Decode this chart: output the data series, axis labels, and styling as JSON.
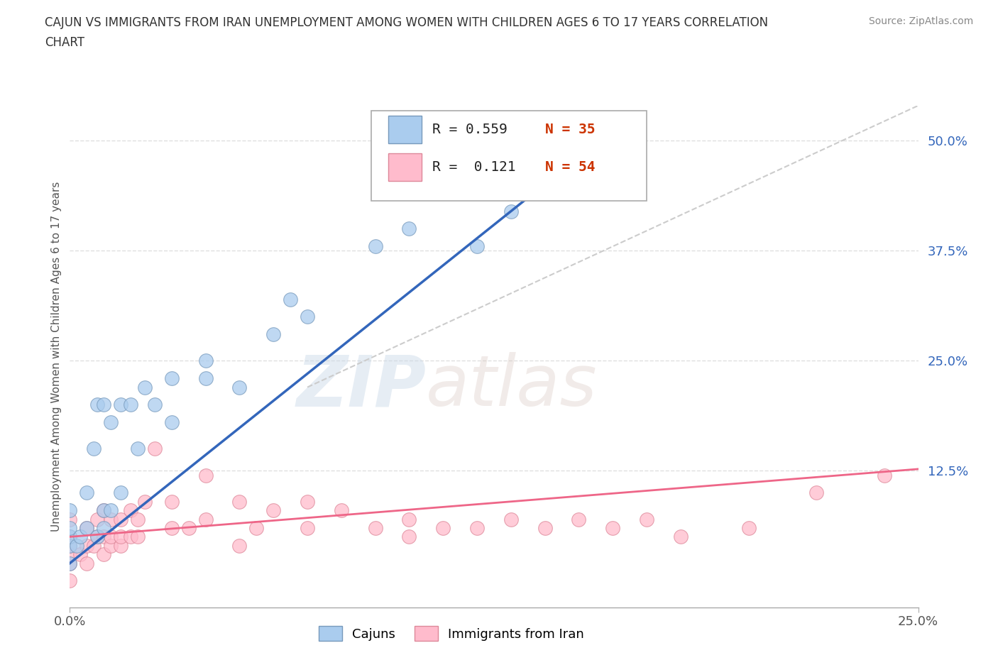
{
  "title_line1": "CAJUN VS IMMIGRANTS FROM IRAN UNEMPLOYMENT AMONG WOMEN WITH CHILDREN AGES 6 TO 17 YEARS CORRELATION",
  "title_line2": "CHART",
  "source": "Source: ZipAtlas.com",
  "ylabel": "Unemployment Among Women with Children Ages 6 to 17 years",
  "xlim": [
    0.0,
    0.25
  ],
  "ylim": [
    -0.03,
    0.54
  ],
  "ytick_labels": [
    "12.5%",
    "25.0%",
    "37.5%",
    "50.0%"
  ],
  "ytick_values": [
    0.125,
    0.25,
    0.375,
    0.5
  ],
  "grid_color": "#e0e0e0",
  "background_color": "#ffffff",
  "cajun_color": "#aaccee",
  "cajun_edge_color": "#7799bb",
  "iran_color": "#ffbbcc",
  "iran_edge_color": "#dd8899",
  "cajun_R": 0.559,
  "cajun_N": 35,
  "iran_R": 0.121,
  "iran_N": 54,
  "cajun_line_color": "#3366bb",
  "iran_line_color": "#ee6688",
  "trend_line_color": "#cccccc",
  "cajun_scatter_x": [
    0.0,
    0.0,
    0.0,
    0.0,
    0.0,
    0.002,
    0.003,
    0.005,
    0.005,
    0.007,
    0.008,
    0.008,
    0.01,
    0.01,
    0.01,
    0.012,
    0.012,
    0.015,
    0.015,
    0.018,
    0.02,
    0.022,
    0.025,
    0.03,
    0.03,
    0.04,
    0.04,
    0.05,
    0.06,
    0.065,
    0.07,
    0.09,
    0.1,
    0.12,
    0.13
  ],
  "cajun_scatter_y": [
    0.02,
    0.04,
    0.05,
    0.06,
    0.08,
    0.04,
    0.05,
    0.06,
    0.1,
    0.15,
    0.05,
    0.2,
    0.06,
    0.08,
    0.2,
    0.08,
    0.18,
    0.1,
    0.2,
    0.2,
    0.15,
    0.22,
    0.2,
    0.18,
    0.23,
    0.23,
    0.25,
    0.22,
    0.28,
    0.32,
    0.3,
    0.38,
    0.4,
    0.38,
    0.42
  ],
  "iran_scatter_x": [
    0.0,
    0.0,
    0.0,
    0.0,
    0.0,
    0.0,
    0.003,
    0.005,
    0.005,
    0.005,
    0.007,
    0.008,
    0.008,
    0.01,
    0.01,
    0.01,
    0.012,
    0.012,
    0.012,
    0.015,
    0.015,
    0.015,
    0.018,
    0.018,
    0.02,
    0.02,
    0.022,
    0.025,
    0.03,
    0.03,
    0.035,
    0.04,
    0.04,
    0.05,
    0.05,
    0.055,
    0.06,
    0.07,
    0.07,
    0.08,
    0.09,
    0.1,
    0.1,
    0.11,
    0.12,
    0.13,
    0.14,
    0.15,
    0.16,
    0.17,
    0.18,
    0.2,
    0.22,
    0.24
  ],
  "iran_scatter_y": [
    0.0,
    0.02,
    0.03,
    0.04,
    0.05,
    0.07,
    0.03,
    0.02,
    0.04,
    0.06,
    0.04,
    0.05,
    0.07,
    0.03,
    0.05,
    0.08,
    0.04,
    0.05,
    0.07,
    0.04,
    0.05,
    0.07,
    0.05,
    0.08,
    0.05,
    0.07,
    0.09,
    0.15,
    0.06,
    0.09,
    0.06,
    0.07,
    0.12,
    0.04,
    0.09,
    0.06,
    0.08,
    0.06,
    0.09,
    0.08,
    0.06,
    0.05,
    0.07,
    0.06,
    0.06,
    0.07,
    0.06,
    0.07,
    0.06,
    0.07,
    0.05,
    0.06,
    0.1,
    0.12
  ],
  "watermark_zip": "ZIP",
  "watermark_atlas": "atlas",
  "legend_label_cajun": "Cajuns",
  "legend_label_iran": "Immigrants from Iran",
  "legend_R_color": "#2255aa",
  "legend_N_color": "#cc3300"
}
